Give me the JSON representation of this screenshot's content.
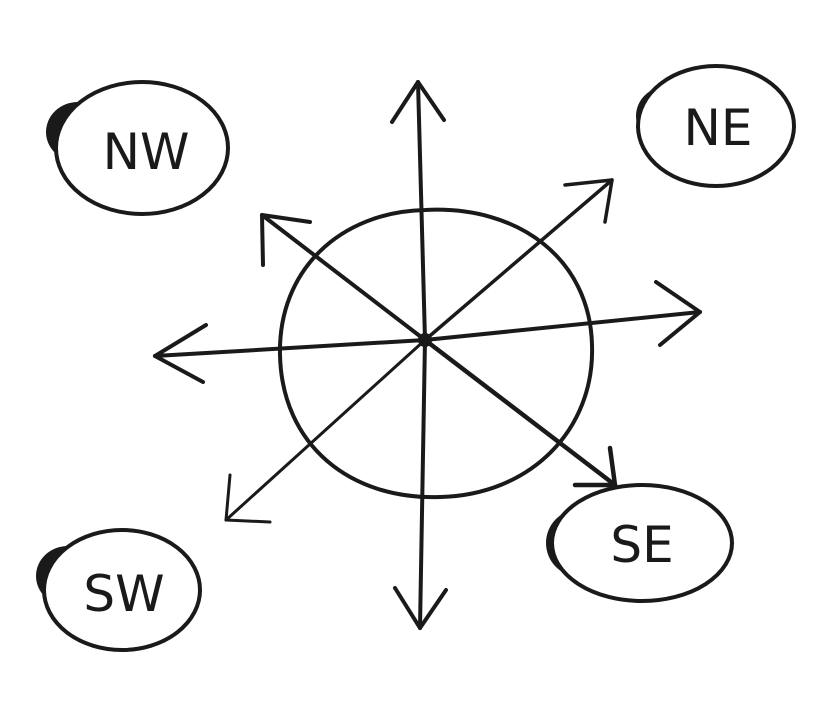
{
  "labels": {
    "nw": "NW",
    "ne": "NE",
    "sw": "SW",
    "se": "SE"
  },
  "colors": {
    "ink": "#1a1a1a",
    "background": "#ffffff"
  }
}
